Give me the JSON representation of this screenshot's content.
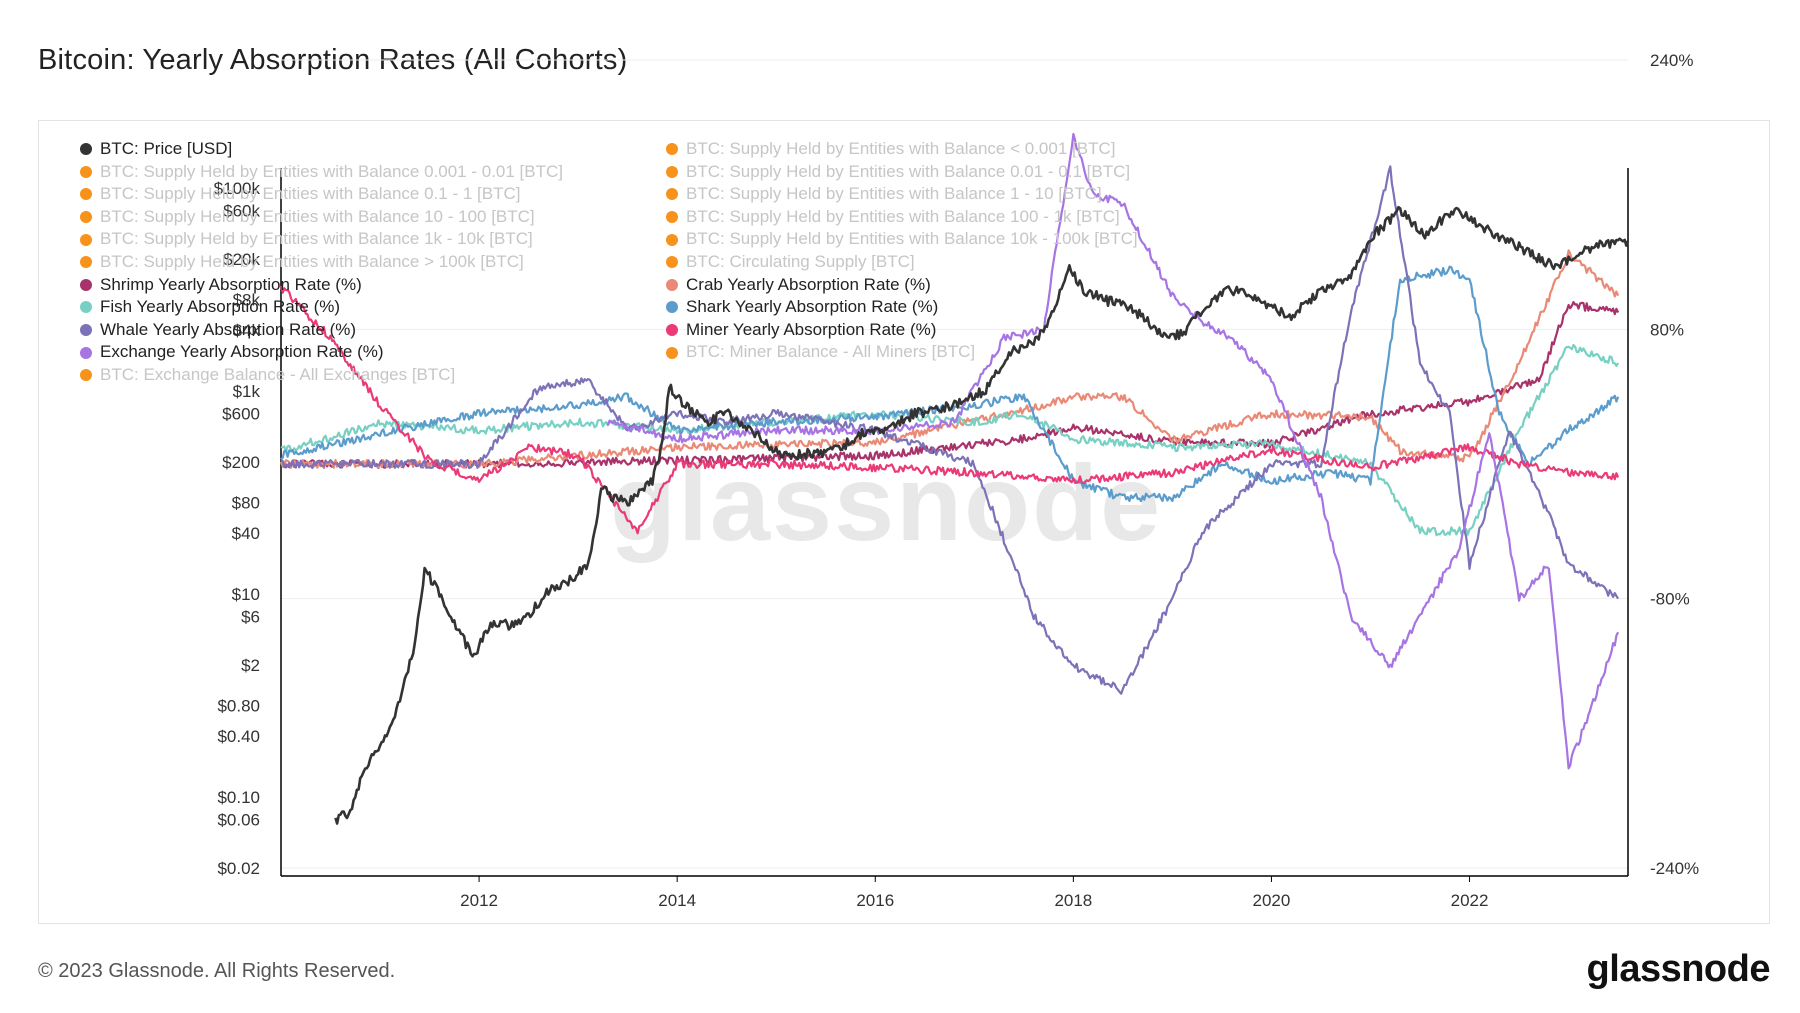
{
  "header": {
    "title": "Bitcoin: Yearly Absorption Rates (All Cohorts)"
  },
  "watermark": "glassnode",
  "footer": {
    "copyright": "© 2023 Glassnode. All Rights Reserved.",
    "logo": "glassnode"
  },
  "legend": [
    {
      "label": "BTC: Price [USD]",
      "color": "#333333",
      "active": true
    },
    {
      "label": "BTC: Supply Held by Entities with Balance < 0.001 [BTC]",
      "color": "#f7931a",
      "active": false
    },
    {
      "label": "BTC: Supply Held by Entities with Balance 0.001 - 0.01 [BTC]",
      "color": "#f7931a",
      "active": false
    },
    {
      "label": "BTC: Supply Held by Entities with Balance 0.01 - 0.1 [BTC]",
      "color": "#f7931a",
      "active": false
    },
    {
      "label": "BTC: Supply Held by Entities with Balance 0.1 - 1 [BTC]",
      "color": "#f7931a",
      "active": false
    },
    {
      "label": "BTC: Supply Held by Entities with Balance 1 - 10 [BTC]",
      "color": "#f7931a",
      "active": false
    },
    {
      "label": "BTC: Supply Held by Entities with Balance 10 - 100 [BTC]",
      "color": "#f7931a",
      "active": false
    },
    {
      "label": "BTC: Supply Held by Entities with Balance 100 - 1k [BTC]",
      "color": "#f7931a",
      "active": false
    },
    {
      "label": "BTC: Supply Held by Entities with Balance 1k - 10k [BTC]",
      "color": "#f7931a",
      "active": false
    },
    {
      "label": "BTC: Supply Held by Entities with Balance 10k - 100k [BTC]",
      "color": "#f7931a",
      "active": false
    },
    {
      "label": "BTC: Supply Held by Entities with Balance > 100k [BTC]",
      "color": "#f7931a",
      "active": false
    },
    {
      "label": "BTC: Circulating Supply [BTC]",
      "color": "#f7931a",
      "active": false
    },
    {
      "label": "Shrimp Yearly Absorption Rate (%)",
      "color": "#a8336a",
      "active": true
    },
    {
      "label": "Crab Yearly Absorption Rate (%)",
      "color": "#ea8a76",
      "active": true
    },
    {
      "label": "Fish Yearly Absorption Rate (%)",
      "color": "#78d0c3",
      "active": true
    },
    {
      "label": "Shark Yearly Absorption Rate (%)",
      "color": "#5b9ccc",
      "active": true
    },
    {
      "label": "Whale Yearly Absorption Rate (%)",
      "color": "#7b72b8",
      "active": true
    },
    {
      "label": "Miner Yearly Absorption Rate (%)",
      "color": "#ea3a78",
      "active": true
    },
    {
      "label": "Exchange Yearly Absorption Rate (%)",
      "color": "#a774e4",
      "active": true
    },
    {
      "label": "BTC: Miner Balance - All Miners [BTC]",
      "color": "#f7931a",
      "active": false
    },
    {
      "label": "BTC: Exchange Balance - All Exchanges [BTC]",
      "color": "#f7931a",
      "active": false
    }
  ],
  "chart_data": {
    "type": "line",
    "x_axis": {
      "ticks": [
        "2012",
        "2014",
        "2016",
        "2018",
        "2020",
        "2022"
      ],
      "range": [
        2010.0,
        2023.6
      ]
    },
    "y_left": {
      "scale": "log",
      "label": "",
      "ticks": [
        {
          "label": "$100k",
          "value": 100000
        },
        {
          "label": "$60k",
          "value": 60000
        },
        {
          "label": "$20k",
          "value": 20000
        },
        {
          "label": "$8k",
          "value": 8000
        },
        {
          "label": "$4k",
          "value": 4000
        },
        {
          "label": "$1k",
          "value": 1000
        },
        {
          "label": "$600",
          "value": 600
        },
        {
          "label": "$200",
          "value": 200
        },
        {
          "label": "$80",
          "value": 80
        },
        {
          "label": "$40",
          "value": 40
        },
        {
          "label": "$10",
          "value": 10
        },
        {
          "label": "$6",
          "value": 6
        },
        {
          "label": "$2",
          "value": 2
        },
        {
          "label": "$0.80",
          "value": 0.8
        },
        {
          "label": "$0.40",
          "value": 0.4
        },
        {
          "label": "$0.10",
          "value": 0.1
        },
        {
          "label": "$0.06",
          "value": 0.06
        },
        {
          "label": "$0.02",
          "value": 0.02
        }
      ]
    },
    "y_right": {
      "scale": "linear",
      "ticks": [
        {
          "label": "240%",
          "value": 240
        },
        {
          "label": "80%",
          "value": 80
        },
        {
          "label": "-80%",
          "value": -80
        },
        {
          "label": "-240%",
          "value": -240
        }
      ]
    },
    "series": [
      {
        "name": "BTC: Price [USD]",
        "axis": "left",
        "color": "#333333",
        "points": [
          [
            2010.55,
            0.06
          ],
          [
            2010.7,
            0.07
          ],
          [
            2010.85,
            0.2
          ],
          [
            2011.0,
            0.3
          ],
          [
            2011.2,
            0.9
          ],
          [
            2011.35,
            3
          ],
          [
            2011.45,
            18
          ],
          [
            2011.6,
            10
          ],
          [
            2011.8,
            4
          ],
          [
            2011.95,
            2.5
          ],
          [
            2012.1,
            5
          ],
          [
            2012.3,
            5
          ],
          [
            2012.5,
            6
          ],
          [
            2012.7,
            11
          ],
          [
            2012.9,
            13
          ],
          [
            2013.1,
            20
          ],
          [
            2013.25,
            120
          ],
          [
            2013.35,
            90
          ],
          [
            2013.5,
            80
          ],
          [
            2013.75,
            130
          ],
          [
            2013.85,
            300
          ],
          [
            2013.92,
            1100
          ],
          [
            2014.1,
            700
          ],
          [
            2014.3,
            500
          ],
          [
            2014.5,
            600
          ],
          [
            2014.8,
            380
          ],
          [
            2015.05,
            230
          ],
          [
            2015.3,
            240
          ],
          [
            2015.6,
            260
          ],
          [
            2015.9,
            400
          ],
          [
            2016.1,
            420
          ],
          [
            2016.4,
            600
          ],
          [
            2016.6,
            650
          ],
          [
            2016.9,
            800
          ],
          [
            2017.1,
            1000
          ],
          [
            2017.4,
            2500
          ],
          [
            2017.6,
            3000
          ],
          [
            2017.8,
            6000
          ],
          [
            2017.96,
            16000
          ],
          [
            2018.1,
            10000
          ],
          [
            2018.3,
            8000
          ],
          [
            2018.6,
            6500
          ],
          [
            2018.9,
            3500
          ],
          [
            2019.1,
            3700
          ],
          [
            2019.4,
            8000
          ],
          [
            2019.6,
            10000
          ],
          [
            2019.9,
            7500
          ],
          [
            2020.2,
            5500
          ],
          [
            2020.5,
            9500
          ],
          [
            2020.8,
            13000
          ],
          [
            2021.0,
            32000
          ],
          [
            2021.3,
            60000
          ],
          [
            2021.55,
            35000
          ],
          [
            2021.85,
            62000
          ],
          [
            2022.1,
            42000
          ],
          [
            2022.4,
            30000
          ],
          [
            2022.7,
            20000
          ],
          [
            2022.9,
            16500
          ],
          [
            2023.1,
            23000
          ],
          [
            2023.3,
            28000
          ],
          [
            2023.6,
            30000
          ]
        ]
      },
      {
        "name": "Shrimp Yearly Absorption Rate (%)",
        "axis": "right",
        "color": "#a8336a",
        "points": [
          [
            2010.0,
            0
          ],
          [
            2012.0,
            0
          ],
          [
            2014.0,
            2
          ],
          [
            2016.0,
            5
          ],
          [
            2017.5,
            15
          ],
          [
            2018.0,
            22
          ],
          [
            2019.0,
            13
          ],
          [
            2020.0,
            12
          ],
          [
            2021.0,
            30
          ],
          [
            2022.0,
            37
          ],
          [
            2022.7,
            50
          ],
          [
            2023.0,
            95
          ],
          [
            2023.5,
            90
          ]
        ]
      },
      {
        "name": "Crab Yearly Absorption Rate (%)",
        "axis": "right",
        "color": "#ea8a76",
        "points": [
          [
            2010.0,
            0
          ],
          [
            2012.0,
            0
          ],
          [
            2014.0,
            10
          ],
          [
            2016.0,
            13
          ],
          [
            2017.5,
            32
          ],
          [
            2018.0,
            40
          ],
          [
            2018.5,
            40
          ],
          [
            2019.0,
            14
          ],
          [
            2020.0,
            30
          ],
          [
            2021.0,
            28
          ],
          [
            2021.3,
            8
          ],
          [
            2022.0,
            3
          ],
          [
            2022.5,
            60
          ],
          [
            2023.0,
            125
          ],
          [
            2023.5,
            100
          ]
        ]
      },
      {
        "name": "Fish Yearly Absorption Rate (%)",
        "axis": "right",
        "color": "#78d0c3",
        "points": [
          [
            2010.0,
            8
          ],
          [
            2011.0,
            24
          ],
          [
            2012.0,
            20
          ],
          [
            2013.0,
            25
          ],
          [
            2014.0,
            20
          ],
          [
            2015.0,
            25
          ],
          [
            2016.0,
            30
          ],
          [
            2017.0,
            25
          ],
          [
            2017.5,
            30
          ],
          [
            2018.0,
            15
          ],
          [
            2019.0,
            10
          ],
          [
            2020.0,
            12
          ],
          [
            2021.0,
            0
          ],
          [
            2021.5,
            -40
          ],
          [
            2022.0,
            -40
          ],
          [
            2022.5,
            20
          ],
          [
            2023.0,
            70
          ],
          [
            2023.5,
            60
          ]
        ]
      },
      {
        "name": "Shark Yearly Absorption Rate (%)",
        "axis": "right",
        "color": "#5b9ccc",
        "points": [
          [
            2010.0,
            5
          ],
          [
            2011.0,
            18
          ],
          [
            2012.0,
            30
          ],
          [
            2013.0,
            35
          ],
          [
            2013.5,
            40
          ],
          [
            2014.0,
            20
          ],
          [
            2015.0,
            25
          ],
          [
            2016.0,
            28
          ],
          [
            2017.0,
            35
          ],
          [
            2017.5,
            40
          ],
          [
            2018.0,
            -10
          ],
          [
            2018.5,
            -20
          ],
          [
            2019.0,
            -20
          ],
          [
            2019.5,
            0
          ],
          [
            2020.0,
            -10
          ],
          [
            2020.6,
            -5
          ],
          [
            2021.0,
            -10
          ],
          [
            2021.3,
            110
          ],
          [
            2021.8,
            115
          ],
          [
            2022.0,
            110
          ],
          [
            2022.3,
            30
          ],
          [
            2022.6,
            0
          ],
          [
            2023.0,
            20
          ],
          [
            2023.5,
            40
          ]
        ]
      },
      {
        "name": "Whale Yearly Absorption Rate (%)",
        "axis": "right",
        "color": "#7b72b8",
        "points": [
          [
            2010.0,
            0
          ],
          [
            2012.0,
            0
          ],
          [
            2012.6,
            45
          ],
          [
            2013.1,
            50
          ],
          [
            2013.5,
            20
          ],
          [
            2014.0,
            30
          ],
          [
            2014.5,
            25
          ],
          [
            2015.0,
            30
          ],
          [
            2016.0,
            20
          ],
          [
            2016.5,
            10
          ],
          [
            2017.0,
            0
          ],
          [
            2017.2,
            -30
          ],
          [
            2017.6,
            -90
          ],
          [
            2018.0,
            -120
          ],
          [
            2018.5,
            -135
          ],
          [
            2019.0,
            -80
          ],
          [
            2019.3,
            -40
          ],
          [
            2020.0,
            0
          ],
          [
            2020.5,
            0
          ],
          [
            2020.8,
            90
          ],
          [
            2021.2,
            175
          ],
          [
            2021.5,
            60
          ],
          [
            2021.8,
            30
          ],
          [
            2022.0,
            -60
          ],
          [
            2022.4,
            20
          ],
          [
            2022.8,
            -30
          ],
          [
            2023.0,
            -60
          ],
          [
            2023.5,
            -80
          ]
        ]
      },
      {
        "name": "Miner Yearly Absorption Rate (%)",
        "axis": "right",
        "color": "#ea3a78",
        "points": [
          [
            2010.0,
            105
          ],
          [
            2010.5,
            75
          ],
          [
            2011.0,
            35
          ],
          [
            2011.5,
            2
          ],
          [
            2012.0,
            -10
          ],
          [
            2012.5,
            10
          ],
          [
            2013.0,
            5
          ],
          [
            2013.6,
            -40
          ],
          [
            2014.0,
            0
          ],
          [
            2015.0,
            0
          ],
          [
            2016.0,
            -2
          ],
          [
            2017.0,
            -5
          ],
          [
            2018.0,
            -10
          ],
          [
            2019.0,
            -5
          ],
          [
            2020.0,
            8
          ],
          [
            2021.0,
            -2
          ],
          [
            2022.0,
            10
          ],
          [
            2022.5,
            0
          ],
          [
            2023.0,
            -5
          ],
          [
            2023.5,
            -8
          ]
        ]
      },
      {
        "name": "Exchange Yearly Absorption Rate (%)",
        "axis": "right",
        "color": "#a774e4",
        "points": [
          [
            2013.3,
            25
          ],
          [
            2014.0,
            15
          ],
          [
            2015.0,
            20
          ],
          [
            2016.0,
            20
          ],
          [
            2016.8,
            25
          ],
          [
            2017.3,
            75
          ],
          [
            2017.7,
            80
          ],
          [
            2018.0,
            195
          ],
          [
            2018.2,
            160
          ],
          [
            2018.5,
            155
          ],
          [
            2019.0,
            100
          ],
          [
            2019.3,
            85
          ],
          [
            2019.6,
            75
          ],
          [
            2020.0,
            50
          ],
          [
            2020.5,
            -20
          ],
          [
            2020.8,
            -90
          ],
          [
            2021.2,
            -120
          ],
          [
            2021.5,
            -90
          ],
          [
            2021.9,
            -50
          ],
          [
            2022.2,
            20
          ],
          [
            2022.5,
            -80
          ],
          [
            2022.8,
            -60
          ],
          [
            2023.0,
            -180
          ],
          [
            2023.2,
            -150
          ],
          [
            2023.5,
            -100
          ]
        ]
      }
    ]
  }
}
